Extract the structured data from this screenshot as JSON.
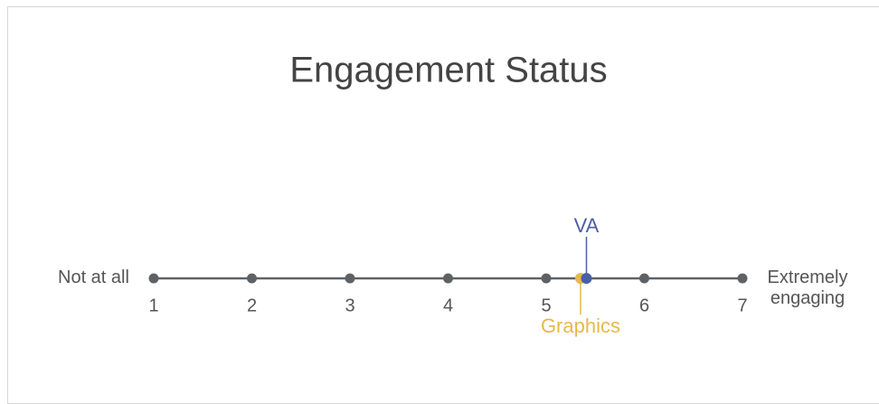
{
  "chart_data": {
    "type": "scale",
    "title": "Engagement Status",
    "min_label": "Not at all",
    "max_label": "Extremely engaging",
    "xlim": [
      1,
      7
    ],
    "xticks": [
      1,
      2,
      3,
      4,
      5,
      6,
      7
    ],
    "series": [
      {
        "name": "VA",
        "color": "#4a5fa5",
        "values": [
          5.41
        ]
      },
      {
        "name": "Graphics",
        "color": "#e8b84a",
        "values": [
          5.35
        ]
      }
    ]
  }
}
